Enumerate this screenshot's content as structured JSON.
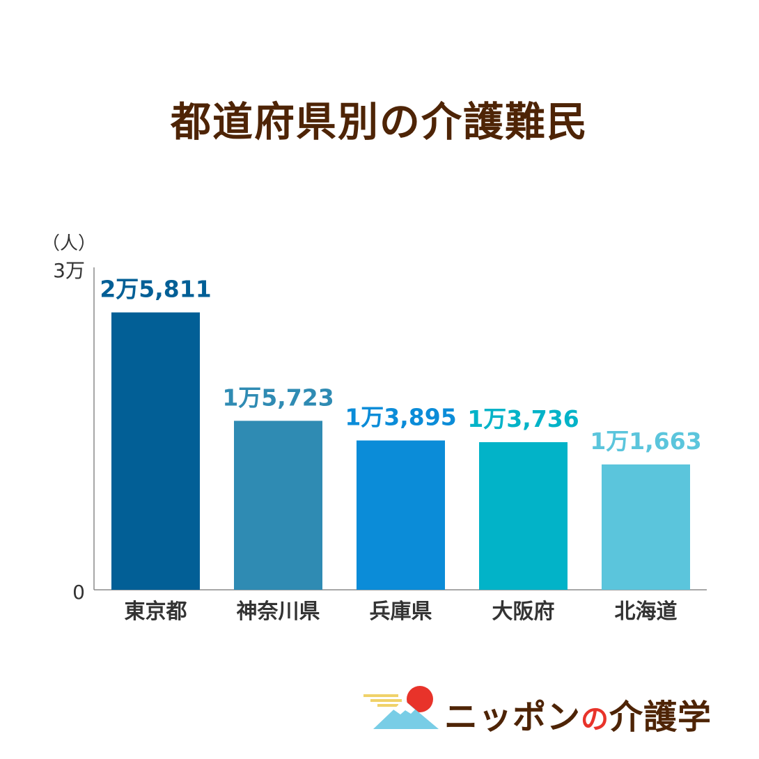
{
  "chart_data": {
    "type": "bar",
    "title": "都道府県別の介護難民",
    "unit_label": "（人）",
    "y_tick_labels": [
      "0",
      "3万"
    ],
    "ylim": [
      0,
      30000
    ],
    "categories": [
      "東京都",
      "神奈川県",
      "兵庫県",
      "大阪府",
      "北海道"
    ],
    "values": [
      25811,
      15723,
      13895,
      13736,
      11663
    ],
    "value_labels": [
      "2万5,811",
      "1万5,723",
      "1万3,895",
      "1万3,736",
      "1万1,663"
    ],
    "bar_colors": [
      "#025f96",
      "#2f8bb3",
      "#0b8cd8",
      "#02b3c8",
      "#5bc5dc"
    ],
    "label_colors": [
      "#025f96",
      "#2f8bb3",
      "#0b8cd8",
      "#02b3c8",
      "#5bc5dc"
    ],
    "grid": false
  },
  "brand": {
    "name_part1": "ニッポン",
    "name_part2": "の",
    "name_part3": "介護学"
  }
}
